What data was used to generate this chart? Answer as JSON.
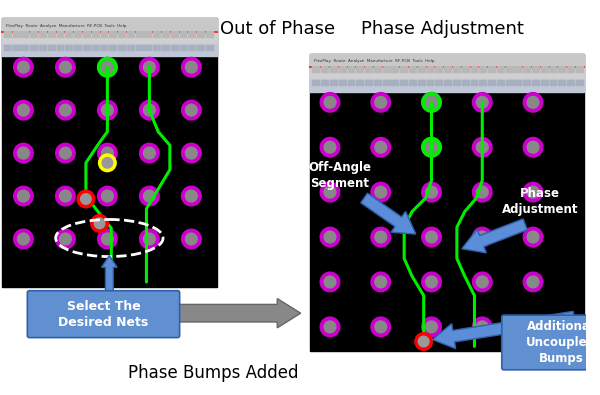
{
  "title_left": "Out of Phase",
  "title_right": "Phase Adjustment",
  "label_bottom": "Phase Bumps Added",
  "label_select": "Select The\nDesired Nets",
  "label_offangle": "Off-Angle\nSegment",
  "label_phase_adj": "Phase\nAdjustment",
  "label_uncoupled": "Additional\nUncoupled\nBumps",
  "bg_color": "#ffffff",
  "pcb_bg": "#000000",
  "bump_outer_color": "#cc00cc",
  "bump_inner_color": "#888888",
  "green_line_color": "#00ee00",
  "yellow_bump_color": "#ffff00",
  "red_bump_color": "#ff0000",
  "arrow_blue": "#5b8dd9",
  "arrow_blue_edge": "#3060aa",
  "arrow_gray": "#888888",
  "callout_bg": "#6090d0",
  "callout_text": "#ffffff",
  "toolbar_bg": "#d0d0d0",
  "toolbar_red": "#ff3333",
  "toolbar_bg2": "#c0c8d8"
}
